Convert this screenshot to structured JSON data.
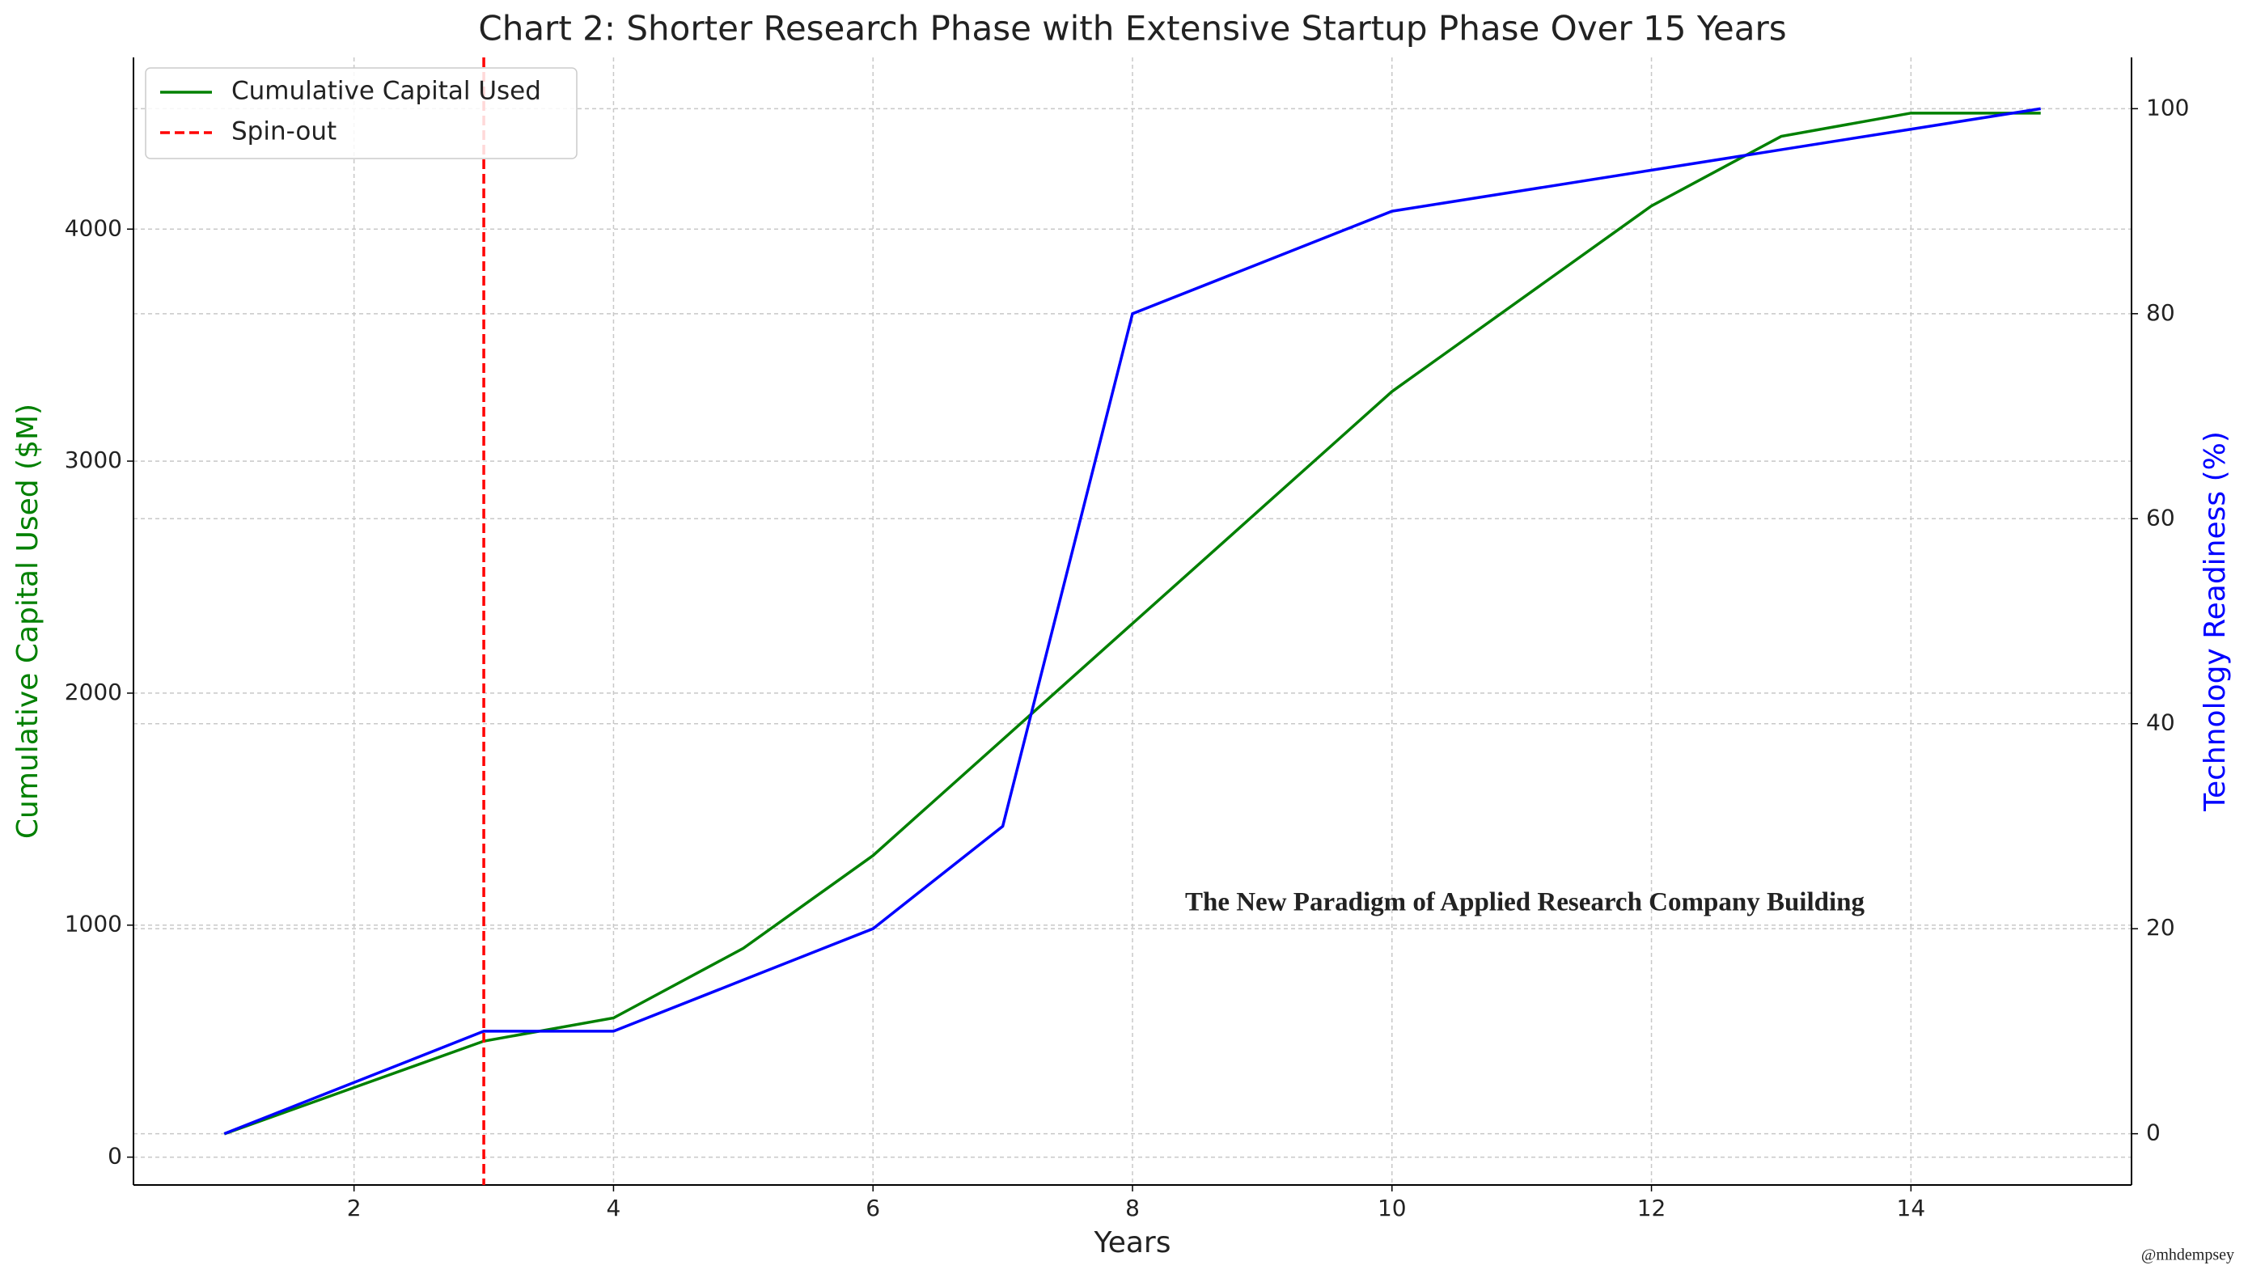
{
  "chart_data": {
    "type": "line",
    "title": "Chart 2: Shorter Research Phase with Extensive Startup Phase Over 15 Years",
    "xlabel": "Years",
    "ylabel": "Cumulative Capital Used ($M)",
    "y2label": "Technology Readiness (%)",
    "ylabel_color": "green",
    "y2label_color": "blue",
    "x": [
      1,
      2,
      3,
      4,
      5,
      6,
      7,
      8,
      9,
      10,
      11,
      12,
      13,
      14,
      15
    ],
    "series": [
      {
        "name": "Cumulative Capital Used",
        "color": "green",
        "values": [
          100,
          300,
          500,
          600,
          900,
          1300,
          1800,
          2300,
          2800,
          3300,
          3700,
          4100,
          4400,
          4500,
          4500
        ]
      },
      {
        "name": "Technology Readiness",
        "color": "blue",
        "axis": "y2",
        "values": [
          0,
          5,
          10,
          10,
          15,
          20,
          30,
          80,
          85,
          90,
          92,
          94,
          96,
          98,
          100
        ]
      }
    ],
    "vlines": [
      {
        "name": "Spin-out",
        "x": 3,
        "color": "red"
      }
    ],
    "xlim": [
      0.3,
      15.7
    ],
    "xticks": [
      2,
      4,
      6,
      8,
      10,
      12,
      14
    ],
    "ylim": [
      -120,
      4740
    ],
    "yticks": [
      0,
      1000,
      2000,
      3000,
      4000
    ],
    "y2lim": [
      -5,
      105
    ],
    "y2ticks": [
      0,
      20,
      40,
      60,
      80,
      100
    ],
    "grid": true,
    "legend": "upper left",
    "annotation": "The New Paradigm of Applied Research Company Building",
    "watermark": "@mhdempsey"
  }
}
